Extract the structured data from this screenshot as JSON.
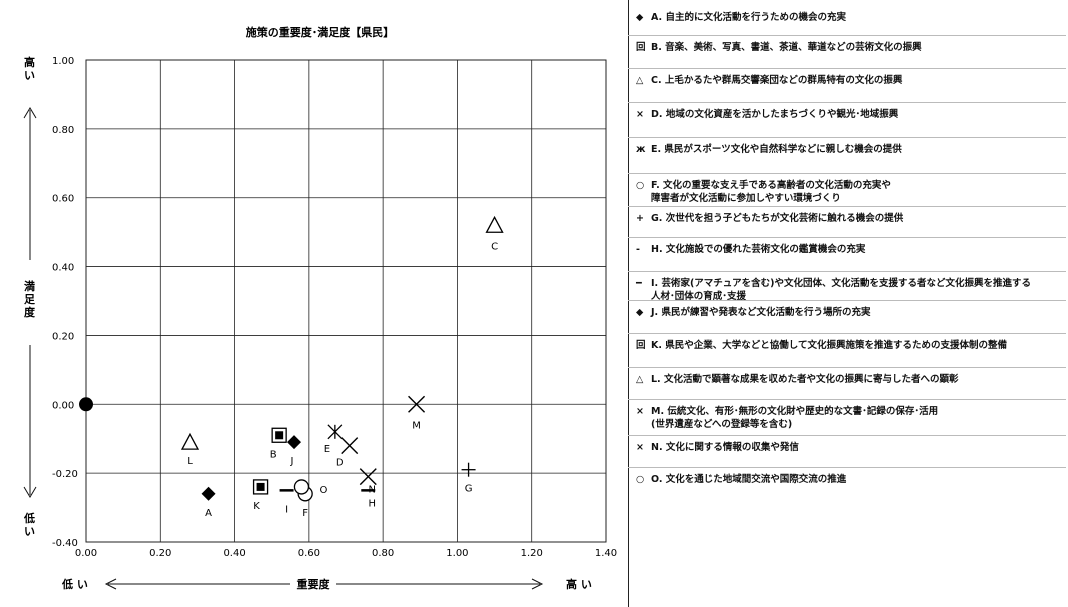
{
  "chart_data": {
    "type": "scatter",
    "title": "施策の重要度･満足度【県民】",
    "xlabel": "重要度",
    "ylabel": "満足度",
    "x_low_label": "低 い",
    "x_high_label": "高 い",
    "y_high_label": "高 い",
    "y_low_label": "低 い",
    "xlim": [
      0,
      1.4
    ],
    "ylim": [
      -0.4,
      1.0
    ],
    "x_ticks": [
      "0.00",
      "0.20",
      "0.40",
      "0.60",
      "0.80",
      "1.00",
      "1.20",
      "1.40"
    ],
    "y_ticks": [
      "1.00",
      "0.80",
      "0.60",
      "0.40",
      "0.20",
      "0.00",
      "-0.20",
      "-0.40"
    ],
    "grid": true,
    "origin_marker": {
      "x": 0.0,
      "y": 0.0
    },
    "points": [
      {
        "label": "A",
        "x": 0.33,
        "y": -0.26,
        "marker": "diamond"
      },
      {
        "label": "B",
        "x": 0.52,
        "y": -0.09,
        "marker": "square-boxed"
      },
      {
        "label": "C",
        "x": 1.1,
        "y": 0.52,
        "marker": "triangle"
      },
      {
        "label": "D",
        "x": 0.71,
        "y": -0.12,
        "marker": "x"
      },
      {
        "label": "E",
        "x": 0.67,
        "y": -0.08,
        "marker": "asterisk"
      },
      {
        "label": "F",
        "x": 0.59,
        "y": -0.26,
        "marker": "circle"
      },
      {
        "label": "G",
        "x": 1.03,
        "y": -0.19,
        "marker": "plus"
      },
      {
        "label": "H",
        "x": 0.76,
        "y": -0.25,
        "marker": "dash"
      },
      {
        "label": "I",
        "x": 0.54,
        "y": -0.25,
        "marker": "dash"
      },
      {
        "label": "J",
        "x": 0.56,
        "y": -0.11,
        "marker": "diamond"
      },
      {
        "label": "K",
        "x": 0.47,
        "y": -0.24,
        "marker": "square-boxed"
      },
      {
        "label": "L",
        "x": 0.28,
        "y": -0.11,
        "marker": "triangle"
      },
      {
        "label": "M",
        "x": 0.89,
        "y": 0.0,
        "marker": "x"
      },
      {
        "label": "N",
        "x": 0.76,
        "y": -0.21,
        "marker": "x"
      },
      {
        "label": "O",
        "x": 0.58,
        "y": -0.24,
        "marker": "circle"
      }
    ]
  },
  "legend": [
    {
      "marker": "◆",
      "code": "A.",
      "text": "自主的に文化活動を行うための機会の充実"
    },
    {
      "marker": "回",
      "code": "B.",
      "text": "音楽、美術、写真、書道、茶道、華道などの芸術文化の振興"
    },
    {
      "marker": "△",
      "code": "C.",
      "text": "上毛かるたや群馬交響楽団などの群馬特有の文化の振興"
    },
    {
      "marker": "×",
      "code": "D.",
      "text": "地域の文化資産を活かしたまちづくりや観光･地域振興"
    },
    {
      "marker": "ж",
      "code": "E.",
      "text": "県民がスポーツ文化や自然科学などに親しむ機会の提供"
    },
    {
      "marker": "○",
      "code": "F.",
      "text": "文化の重要な支え手である高齢者の文化活動の充実や",
      "text2": "障害者が文化活動に参加しやすい環境づくり"
    },
    {
      "marker": "+",
      "code": "G.",
      "text": "次世代を担う子どもたちが文化芸術に触れる機会の提供"
    },
    {
      "marker": "-",
      "code": "H.",
      "text": "文化施設での優れた芸術文化の鑑賞機会の充実"
    },
    {
      "marker": "━",
      "code": "I.",
      "text": "芸術家(アマチュアを含む)や文化団体、文化活動を支援する者など文化振興を推進する",
      "text2": "人材･団体の育成･支援"
    },
    {
      "marker": "◆",
      "code": "J.",
      "text": "県民が練習や発表など文化活動を行う場所の充実"
    },
    {
      "marker": "回",
      "code": "K.",
      "text": "県民や企業、大学などと協働して文化振興施策を推進するための支援体制の整備"
    },
    {
      "marker": "△",
      "code": "L.",
      "text": "文化活動で顕著な成果を収めた者や文化の振興に寄与した者への顕彰"
    },
    {
      "marker": "×",
      "code": "M.",
      "text": "伝統文化、有形･無形の文化財や歴史的な文書･記録の保存･活用",
      "text2": "(世界遺産などへの登録等を含む)"
    },
    {
      "marker": "×",
      "code": "N.",
      "text": "文化に関する情報の収集や発信"
    },
    {
      "marker": "○",
      "code": "O.",
      "text": "文化を通じた地域間交流や国際交流の推進"
    }
  ]
}
